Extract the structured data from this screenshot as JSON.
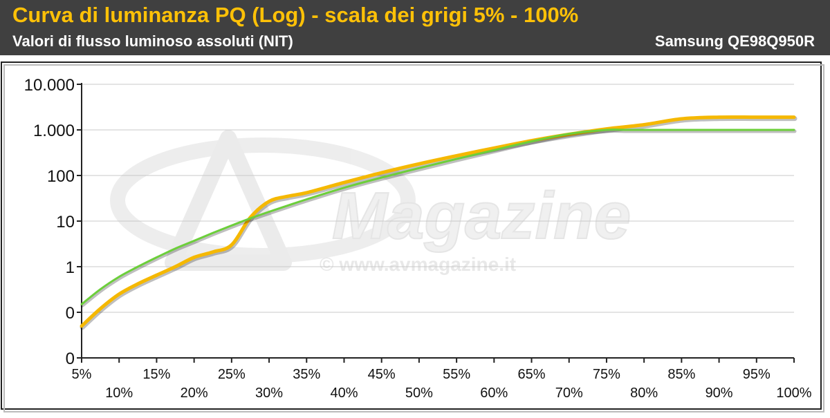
{
  "header": {
    "title": "Curva di luminanza PQ (Log) - scala dei grigi 5% - 100%",
    "subtitle": "Valori di flusso luminoso assoluti (NIT)",
    "model": "Samsung QE98Q950R"
  },
  "watermark": {
    "brand": "Magazine",
    "url": "© www.avmagazine.it"
  },
  "colors": {
    "header_bg": "#404040",
    "title": "#ffc107",
    "series_measured": "#f5b800",
    "series_reference": "#6ccf3a",
    "grid": "#c8c8c8"
  },
  "chart_data": {
    "type": "line",
    "title": "Curva di luminanza PQ (Log) - scala dei grigi 5% - 100%",
    "ylabel": "",
    "xlabel": "",
    "yscale": "log",
    "ylim": [
      0.01,
      10000
    ],
    "y_tick_values": [
      0.01,
      0.1,
      1,
      10,
      100,
      1000,
      10000
    ],
    "y_tick_labels": [
      "0",
      "0",
      "1",
      "10",
      "100",
      "1.000",
      "10.000"
    ],
    "x_ticks": [
      5,
      10,
      15,
      20,
      25,
      30,
      35,
      40,
      45,
      50,
      55,
      60,
      65,
      70,
      75,
      80,
      85,
      90,
      95,
      100
    ],
    "x_tick_labels": [
      "5%",
      "10%",
      "15%",
      "20%",
      "25%",
      "30%",
      "35%",
      "40%",
      "45%",
      "50%",
      "55%",
      "60%",
      "65%",
      "70%",
      "75%",
      "80%",
      "85%",
      "90%",
      "95%",
      "100%"
    ],
    "grid": true,
    "legend": "none",
    "series": [
      {
        "x": [
          5,
          7.5,
          10,
          12.5,
          15,
          17.5,
          20,
          22.5,
          25,
          27.5,
          30,
          32.5,
          35,
          40,
          45,
          50,
          55,
          60,
          65,
          70,
          75,
          80,
          85,
          90,
          95,
          100
        ],
        "values": [
          0.05,
          0.12,
          0.25,
          0.42,
          0.65,
          1.0,
          1.6,
          2.1,
          3.0,
          12,
          27,
          35,
          42,
          70,
          115,
          180,
          270,
          400,
          580,
          800,
          1050,
          1300,
          1750,
          1900,
          1900,
          1900
        ]
      },
      {
        "x": [
          5,
          7.5,
          10,
          12.5,
          15,
          17.5,
          20,
          22.5,
          25,
          27.5,
          30,
          32.5,
          35,
          40,
          45,
          50,
          55,
          60,
          65,
          70,
          75,
          77.5,
          80,
          85,
          90,
          95,
          100
        ],
        "values": [
          0.15,
          0.32,
          0.6,
          1.0,
          1.6,
          2.5,
          3.7,
          5.5,
          8.0,
          11.5,
          16,
          22,
          30,
          54,
          90,
          145,
          230,
          360,
          560,
          820,
          1000,
          1000,
          1000,
          1000,
          1000,
          1000,
          1000
        ]
      }
    ]
  }
}
